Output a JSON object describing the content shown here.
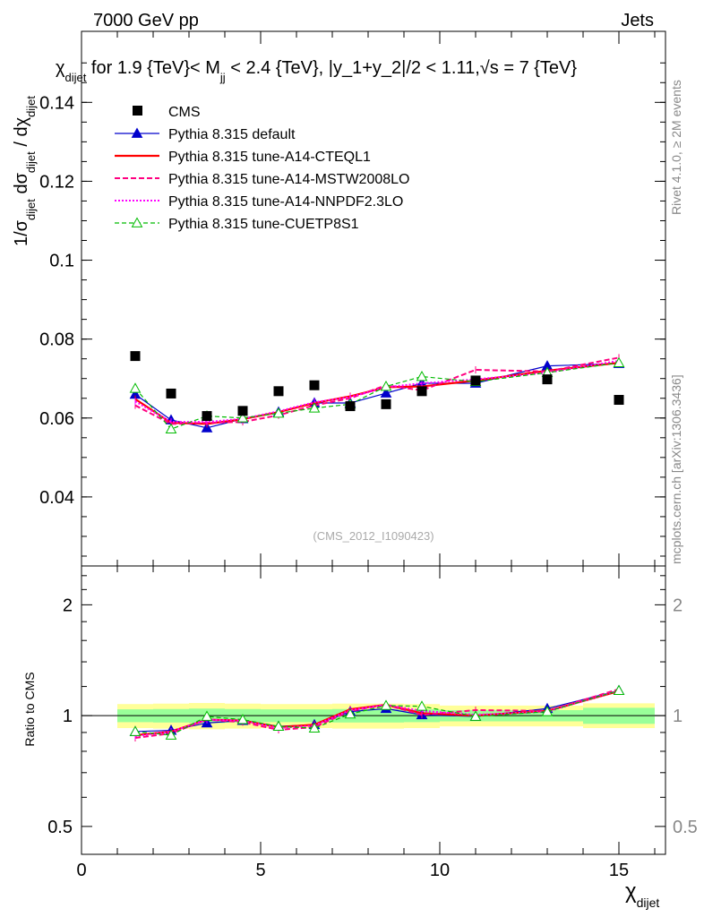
{
  "header": {
    "left": "7000 GeV pp",
    "right": "Jets"
  },
  "side_labels": {
    "rivet": "Rivet 4.1.0, ≥ 2M events",
    "mcplots": "mcplots.cern.ch [arXiv:1306.3436]"
  },
  "watermark": "(CMS_2012_I1090423)",
  "colors": {
    "cms": "#000000",
    "default": "#0000cc",
    "a14_cteql1": "#ff0000",
    "mstw": "#ff0080",
    "nnpdf": "#ff00ff",
    "cuetp8s1": "#00bb00",
    "band_outer": "#ffff99",
    "band_inner": "#99ff99"
  },
  "chart_data": [
    {
      "type": "line",
      "panel": "main",
      "title": "χ_dijet for 1.9 {TeV}< M_jj < 2.4 {TeV}, |y_1+y_2|/2 < 1.11,√s = 7 {TeV}",
      "title_prefix": "χ",
      "title_prefix_sub": "dijet",
      "title_rest_a": " for 1.9 {TeV}< M",
      "title_rest_sub": "jj",
      "title_rest_b": " < 2.4 {TeV}, |y_1+y_2|/2 < 1.11,√s = 7 {TeV}",
      "ylabel": "1/σ_dijet dσ_dijet / dχ_dijet",
      "ylabel_parts": {
        "a": "1/σ",
        "a_sub": "dijet",
        "b": " dσ",
        "b_sub": "dijet",
        "c": " / dχ",
        "c_sub": "dijet"
      },
      "xlim": [
        0,
        16.3
      ],
      "ylim": [
        0.0225,
        0.158
      ],
      "yticks": [
        0.04,
        0.06,
        0.08,
        0.1,
        0.12,
        0.14
      ],
      "ytick_labels": [
        "0.04",
        "0.06",
        "0.08",
        "0.1",
        "0.12",
        "0.14"
      ],
      "x": [
        1.5,
        2.5,
        3.5,
        4.5,
        5.5,
        6.5,
        7.5,
        8.5,
        9.5,
        11,
        13,
        15
      ],
      "x_edges": [
        1,
        2,
        3,
        4,
        5,
        6,
        7,
        8,
        9,
        10,
        12,
        14,
        16
      ],
      "series": [
        {
          "name": "CMS",
          "key": "cms",
          "style": "marker-square",
          "values": [
            0.0757,
            0.0662,
            0.0605,
            0.0618,
            0.0668,
            0.0683,
            0.063,
            0.0635,
            0.0668,
            0.0695,
            0.0698,
            0.0646
          ]
        },
        {
          "name": "Pythia 8.315 default",
          "key": "default",
          "style": "solid-triangle",
          "values": [
            0.066,
            0.0595,
            0.0575,
            0.0598,
            0.0615,
            0.0638,
            0.0638,
            0.0663,
            0.0688,
            0.0688,
            0.0732,
            0.0738
          ]
        },
        {
          "name": "Pythia 8.315 tune-A14-CTEQL1",
          "key": "a14_cteql1",
          "style": "solid-thick",
          "values": [
            0.0648,
            0.0588,
            0.0585,
            0.0597,
            0.0615,
            0.0638,
            0.0655,
            0.0678,
            0.068,
            0.0695,
            0.072,
            0.074
          ]
        },
        {
          "name": "Pythia 8.315 tune-A14-MSTW2008LO",
          "key": "mstw",
          "style": "dashed",
          "values": [
            0.0632,
            0.0585,
            0.0588,
            0.059,
            0.0607,
            0.0632,
            0.065,
            0.0683,
            0.067,
            0.0722,
            0.0718,
            0.0753
          ]
        },
        {
          "name": "Pythia 8.315 tune-A14-NNPDF2.3LO",
          "key": "nnpdf",
          "style": "dotted",
          "values": [
            0.0642,
            0.059,
            0.059,
            0.0598,
            0.0617,
            0.064,
            0.0653,
            0.0678,
            0.0688,
            0.0698,
            0.0715,
            0.0745
          ]
        },
        {
          "name": "Pythia 8.315 tune-CUETP8S1",
          "key": "cuetp8s1",
          "style": "dashed-open-triangle",
          "values": [
            0.0675,
            0.0572,
            0.0605,
            0.06,
            0.0612,
            0.0625,
            0.0635,
            0.068,
            0.0705,
            0.0692,
            0.0715,
            0.074
          ]
        }
      ],
      "legend": [
        "CMS",
        "Pythia 8.315 default",
        "Pythia 8.315 tune-A14-CTEQL1",
        "Pythia 8.315 tune-A14-MSTW2008LO",
        "Pythia 8.315 tune-A14-NNPDF2.3LO",
        "Pythia 8.315 tune-CUETP8S1"
      ],
      "legend_position": "top-left"
    },
    {
      "type": "line",
      "panel": "ratio",
      "ylabel": "Ratio to CMS",
      "xlabel": "χ_dijet",
      "xlabel_main": "χ",
      "xlabel_sub": "dijet",
      "xlim": [
        0,
        16.3
      ],
      "ylim": [
        0.42,
        2.55
      ],
      "ylog": true,
      "yticks": [
        0.5,
        1,
        2
      ],
      "ytick_labels": [
        "0.5",
        "1",
        "2"
      ],
      "xticks": [
        0,
        5,
        10,
        15
      ],
      "xtick_labels": [
        "0",
        "5",
        "10",
        "15"
      ],
      "x": [
        1.5,
        2.5,
        3.5,
        4.5,
        5.5,
        6.5,
        7.5,
        8.5,
        9.5,
        11,
        13,
        15
      ],
      "x_edges": [
        1,
        2,
        3,
        4,
        5,
        6,
        7,
        8,
        9,
        10,
        12,
        14,
        16
      ],
      "band_outer": [
        [
          0.925,
          1.075
        ],
        [
          0.922,
          1.078
        ],
        [
          0.918,
          1.082
        ],
        [
          0.922,
          1.078
        ],
        [
          0.925,
          1.075
        ],
        [
          0.925,
          1.075
        ],
        [
          0.922,
          1.078
        ],
        [
          0.922,
          1.078
        ],
        [
          0.925,
          1.075
        ],
        [
          0.935,
          1.065
        ],
        [
          0.935,
          1.065
        ],
        [
          0.925,
          1.08
        ]
      ],
      "band_inner": [
        [
          0.96,
          1.04
        ],
        [
          0.958,
          1.042
        ],
        [
          0.955,
          1.045
        ],
        [
          0.958,
          1.042
        ],
        [
          0.96,
          1.04
        ],
        [
          0.96,
          1.04
        ],
        [
          0.958,
          1.042
        ],
        [
          0.958,
          1.042
        ],
        [
          0.96,
          1.04
        ],
        [
          0.965,
          1.035
        ],
        [
          0.965,
          1.035
        ],
        [
          0.95,
          1.05
        ]
      ],
      "series": [
        {
          "name": "Pythia 8.315 default",
          "key": "default",
          "style": "solid-triangle",
          "values": [
            0.905,
            0.912,
            0.955,
            0.97,
            0.935,
            0.945,
            1.025,
            1.045,
            1.005,
            0.995,
            1.045,
            1.17
          ]
        },
        {
          "name": "Pythia 8.315 tune-A14-CTEQL1",
          "key": "a14_cteql1",
          "style": "solid-thick",
          "values": [
            0.885,
            0.905,
            0.975,
            0.97,
            0.93,
            0.945,
            1.04,
            1.07,
            1.015,
            1.0,
            1.03,
            1.165
          ]
        },
        {
          "name": "Pythia 8.315 tune-A14-MSTW2008LO",
          "key": "mstw",
          "style": "dashed",
          "values": [
            0.87,
            0.895,
            0.975,
            0.96,
            0.915,
            0.93,
            1.03,
            1.07,
            1.005,
            1.035,
            1.03,
            1.18
          ]
        },
        {
          "name": "Pythia 8.315 tune-A14-NNPDF2.3LO",
          "key": "nnpdf",
          "style": "dotted",
          "values": [
            0.88,
            0.905,
            0.975,
            0.97,
            0.925,
            0.94,
            1.035,
            1.07,
            1.03,
            1.005,
            1.025,
            1.17
          ]
        },
        {
          "name": "Pythia 8.315 tune-CUETP8S1",
          "key": "cuetp8s1",
          "style": "dashed-open-triangle",
          "values": [
            0.905,
            0.885,
            0.995,
            0.975,
            0.935,
            0.925,
            1.01,
            1.065,
            1.06,
            0.995,
            1.025,
            1.17
          ]
        }
      ]
    }
  ]
}
